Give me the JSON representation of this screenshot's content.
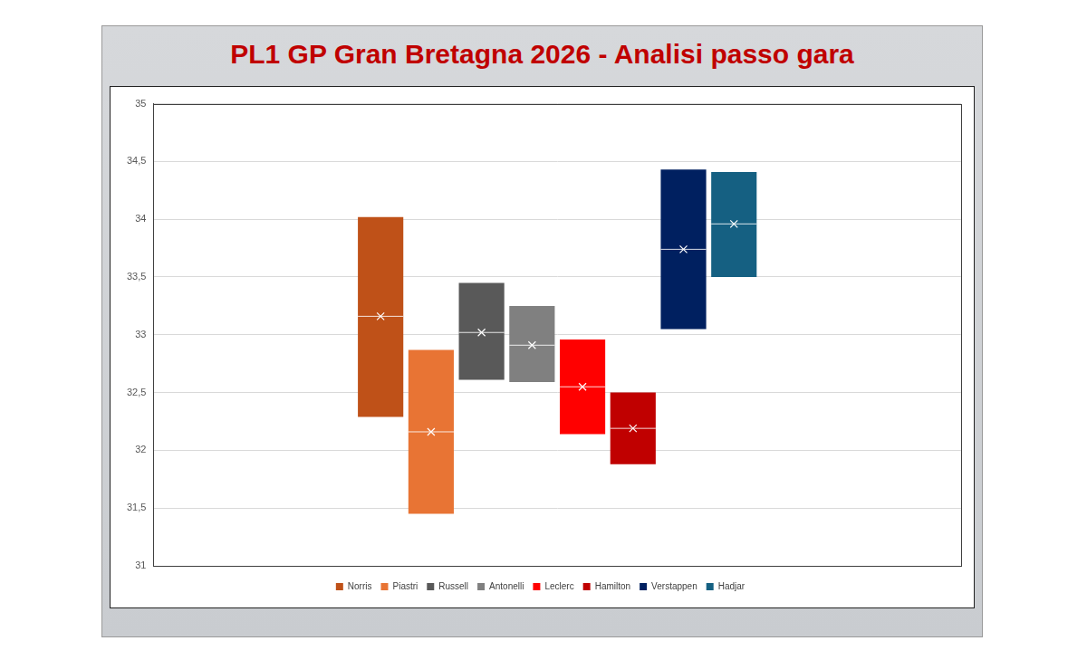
{
  "chart_data": {
    "type": "floating_bar",
    "title": "PL1 GP Gran Bretagna 2026 - Analisi passo gara",
    "series": [
      {
        "name": "Norris",
        "color": "#bf5118",
        "low": 32.29,
        "high": 34.02,
        "mean": 33.16
      },
      {
        "name": "Piastri",
        "color": "#e87434",
        "low": 31.45,
        "high": 32.87,
        "mean": 32.16
      },
      {
        "name": "Russell",
        "color": "#595959",
        "low": 32.61,
        "high": 33.45,
        "mean": 33.02
      },
      {
        "name": "Antonelli",
        "color": "#808080",
        "low": 32.59,
        "high": 33.25,
        "mean": 32.91
      },
      {
        "name": "Leclerc",
        "color": "#ff0000",
        "low": 32.14,
        "high": 32.96,
        "mean": 32.55
      },
      {
        "name": "Hamilton",
        "color": "#c00000",
        "low": 31.88,
        "high": 32.5,
        "mean": 32.19
      },
      {
        "name": "Verstappen",
        "color": "#002060",
        "low": 33.05,
        "high": 34.43,
        "mean": 33.74
      },
      {
        "name": "Hadjar",
        "color": "#156082",
        "low": 33.5,
        "high": 34.41,
        "mean": 33.96
      }
    ],
    "ylim": [
      31,
      35
    ],
    "yticks": [
      31,
      {
        "value": 31.5,
        "label": "31,5"
      },
      32,
      {
        "value": 32.5,
        "label": "32,5"
      },
      33,
      {
        "value": 33.5,
        "label": "33,5"
      },
      34,
      {
        "value": 34.5,
        "label": "34,5"
      },
      35
    ],
    "grid": true,
    "legend": "bottom",
    "tick_labels": "y",
    "marker": "x"
  }
}
